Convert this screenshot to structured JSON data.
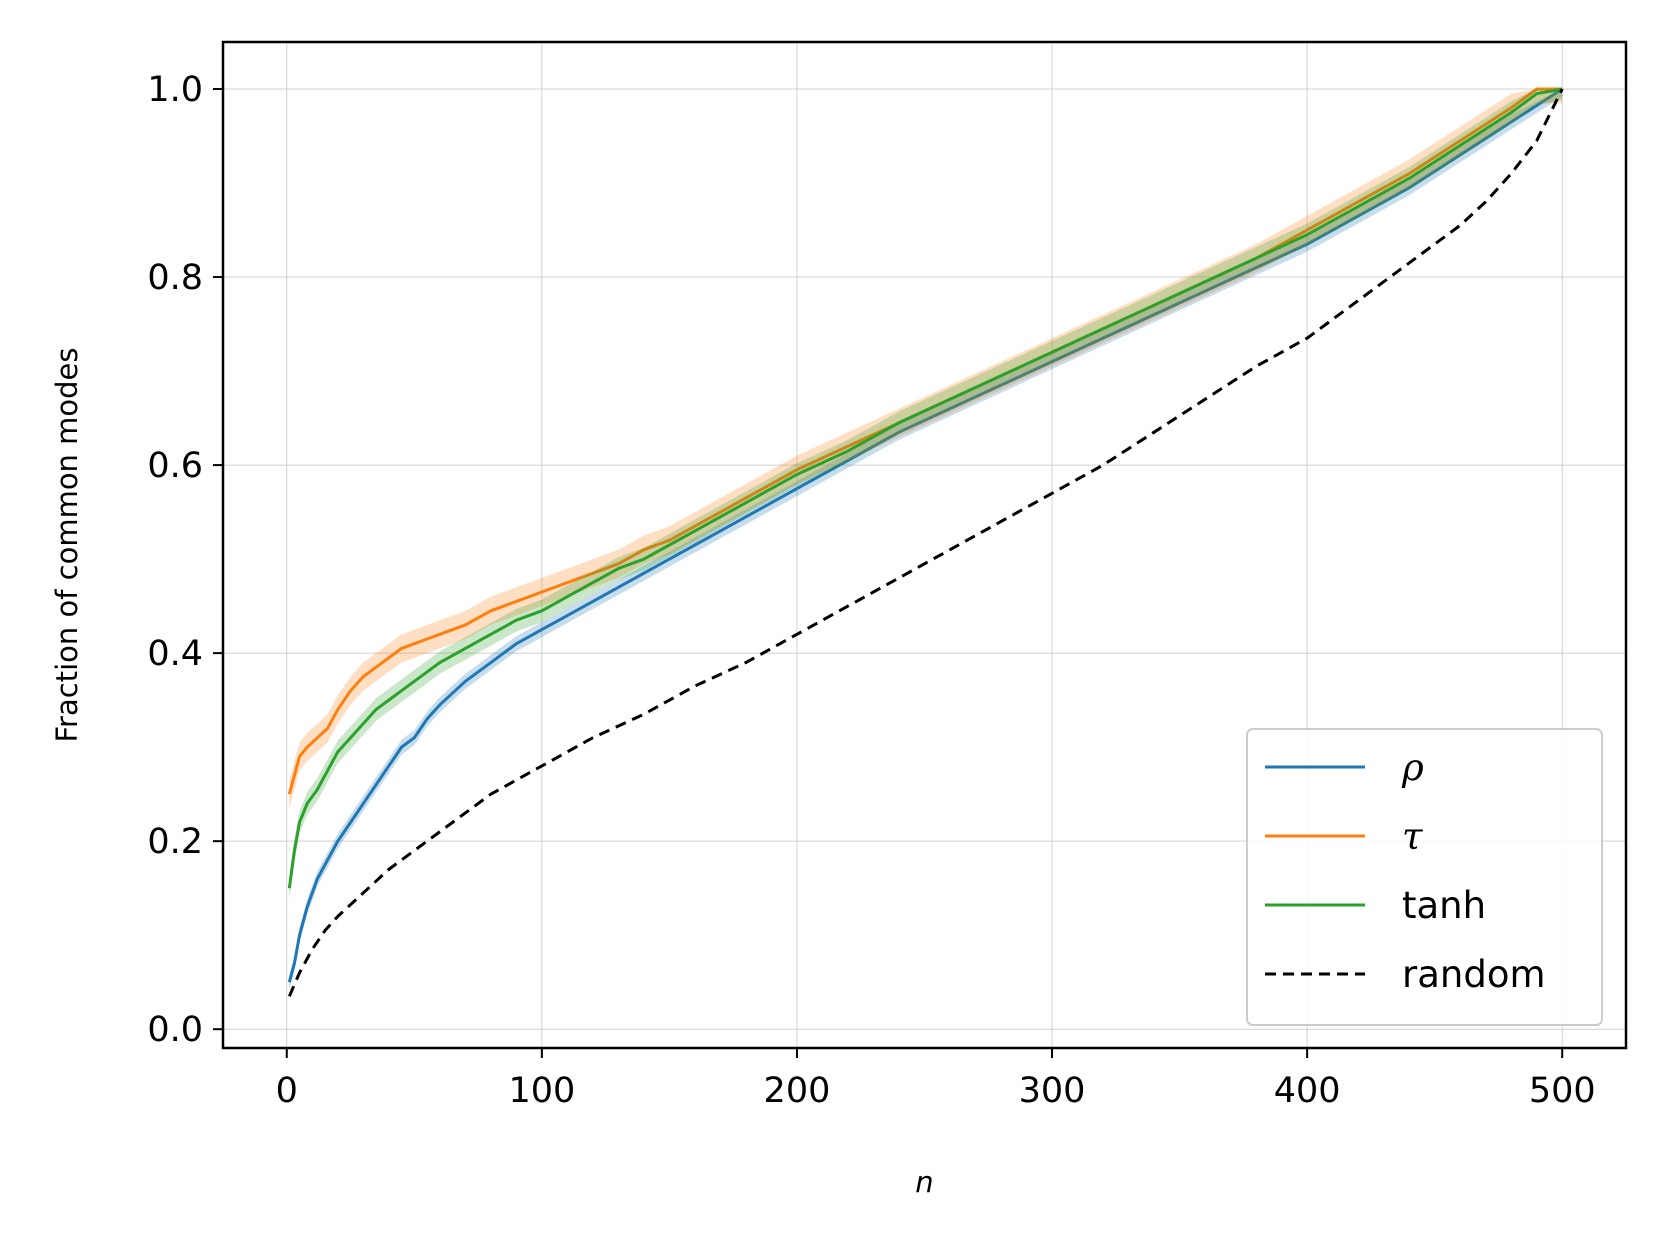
{
  "chart_data": {
    "type": "line",
    "title": "",
    "xlabel": "n",
    "ylabel": "Fraction of common modes",
    "xlim": [
      -25,
      525
    ],
    "ylim": [
      -0.02,
      1.05
    ],
    "xticks": [
      0,
      100,
      200,
      300,
      400,
      500
    ],
    "yticks": [
      0.0,
      0.2,
      0.4,
      0.6,
      0.8,
      1.0
    ],
    "xtick_labels": [
      "0",
      "100",
      "200",
      "300",
      "400",
      "500"
    ],
    "ytick_labels": [
      "0.0",
      "0.2",
      "0.4",
      "0.6",
      "0.8",
      "1.0"
    ],
    "grid": true,
    "legend_position": "lower-right",
    "series": [
      {
        "name": "ρ",
        "color": "#1f77b4",
        "style": "solid",
        "band": 0.008,
        "x": [
          1,
          3,
          5,
          8,
          12,
          16,
          20,
          25,
          30,
          35,
          40,
          45,
          50,
          55,
          60,
          70,
          80,
          90,
          100,
          110,
          120,
          130,
          140,
          150,
          160,
          170,
          180,
          190,
          200,
          220,
          240,
          260,
          280,
          300,
          320,
          340,
          360,
          380,
          400,
          420,
          440,
          460,
          480,
          500
        ],
        "y": [
          0.05,
          0.07,
          0.1,
          0.13,
          0.16,
          0.18,
          0.2,
          0.22,
          0.24,
          0.26,
          0.28,
          0.3,
          0.31,
          0.33,
          0.345,
          0.37,
          0.39,
          0.41,
          0.425,
          0.44,
          0.455,
          0.47,
          0.485,
          0.5,
          0.515,
          0.53,
          0.545,
          0.56,
          0.575,
          0.605,
          0.635,
          0.66,
          0.685,
          0.71,
          0.735,
          0.76,
          0.785,
          0.81,
          0.835,
          0.865,
          0.895,
          0.93,
          0.965,
          1.0
        ]
      },
      {
        "name": "τ",
        "color": "#ff7f0e",
        "style": "solid",
        "band": 0.015,
        "x": [
          1,
          3,
          5,
          8,
          12,
          16,
          20,
          25,
          30,
          35,
          40,
          45,
          50,
          55,
          60,
          70,
          80,
          90,
          100,
          110,
          120,
          130,
          140,
          150,
          160,
          170,
          180,
          190,
          200,
          220,
          240,
          260,
          280,
          300,
          320,
          340,
          360,
          380,
          400,
          420,
          440,
          460,
          480,
          490,
          500
        ],
        "y": [
          0.25,
          0.27,
          0.29,
          0.3,
          0.31,
          0.32,
          0.34,
          0.36,
          0.375,
          0.385,
          0.395,
          0.405,
          0.41,
          0.415,
          0.42,
          0.43,
          0.445,
          0.455,
          0.465,
          0.475,
          0.485,
          0.495,
          0.51,
          0.52,
          0.535,
          0.55,
          0.565,
          0.58,
          0.595,
          0.62,
          0.645,
          0.67,
          0.695,
          0.72,
          0.745,
          0.77,
          0.795,
          0.82,
          0.85,
          0.88,
          0.91,
          0.945,
          0.98,
          1.0,
          1.0
        ]
      },
      {
        "name": "tanh",
        "color": "#2ca02c",
        "style": "solid",
        "band": 0.012,
        "x": [
          1,
          3,
          5,
          8,
          12,
          16,
          20,
          25,
          30,
          35,
          40,
          45,
          50,
          55,
          60,
          70,
          80,
          90,
          100,
          110,
          120,
          130,
          140,
          150,
          160,
          170,
          180,
          190,
          200,
          220,
          240,
          260,
          280,
          300,
          320,
          340,
          360,
          380,
          400,
          420,
          440,
          460,
          480,
          490,
          500
        ],
        "y": [
          0.15,
          0.19,
          0.22,
          0.24,
          0.255,
          0.275,
          0.295,
          0.31,
          0.325,
          0.34,
          0.35,
          0.36,
          0.37,
          0.38,
          0.39,
          0.405,
          0.42,
          0.435,
          0.445,
          0.46,
          0.475,
          0.49,
          0.5,
          0.515,
          0.53,
          0.545,
          0.56,
          0.575,
          0.59,
          0.615,
          0.645,
          0.67,
          0.695,
          0.72,
          0.745,
          0.77,
          0.795,
          0.82,
          0.845,
          0.875,
          0.905,
          0.94,
          0.975,
          0.995,
          1.0
        ]
      },
      {
        "name": "random",
        "color": "#000000",
        "style": "dashed",
        "band": 0,
        "x": [
          1,
          5,
          10,
          15,
          20,
          30,
          40,
          50,
          60,
          70,
          80,
          90,
          100,
          120,
          140,
          160,
          180,
          200,
          220,
          240,
          260,
          280,
          300,
          320,
          340,
          360,
          380,
          400,
          420,
          440,
          460,
          470,
          480,
          490,
          500
        ],
        "y": [
          0.035,
          0.06,
          0.085,
          0.105,
          0.12,
          0.145,
          0.17,
          0.19,
          0.21,
          0.23,
          0.25,
          0.265,
          0.28,
          0.31,
          0.335,
          0.365,
          0.39,
          0.42,
          0.45,
          0.48,
          0.51,
          0.54,
          0.57,
          0.6,
          0.635,
          0.67,
          0.705,
          0.735,
          0.775,
          0.815,
          0.855,
          0.88,
          0.91,
          0.945,
          1.0
        ]
      }
    ]
  }
}
